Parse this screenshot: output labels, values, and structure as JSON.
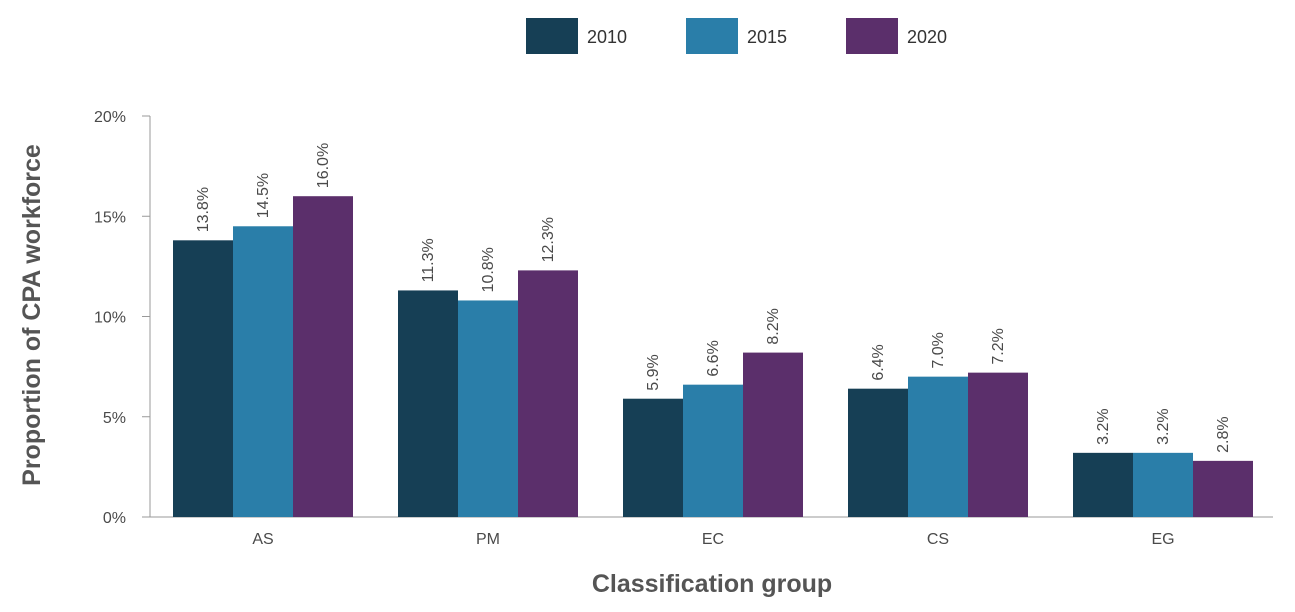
{
  "chart_data": {
    "type": "bar",
    "title": "",
    "xlabel": "Classification group",
    "ylabel": "Proportion of CPA workforce",
    "categories": [
      "AS",
      "PM",
      "EC",
      "CS",
      "EG"
    ],
    "series": [
      {
        "name": "2010",
        "color": "#163f55",
        "values": [
          13.8,
          11.3,
          5.9,
          6.4,
          3.2
        ],
        "labels": [
          "13.8%",
          "11.3%",
          "5.9%",
          "6.4%",
          "3.2%"
        ]
      },
      {
        "name": "2015",
        "color": "#2a7ea9",
        "values": [
          14.5,
          10.8,
          6.6,
          7.0,
          3.2
        ],
        "labels": [
          "14.5%",
          "10.8%",
          "6.6%",
          "7.0%",
          "3.2%"
        ]
      },
      {
        "name": "2020",
        "color": "#5b2f6b",
        "values": [
          16.0,
          12.3,
          8.2,
          7.2,
          2.8
        ],
        "labels": [
          "16.0%",
          "12.3%",
          "8.2%",
          "7.2%",
          "2.8%"
        ]
      }
    ],
    "ylim": [
      0,
      20
    ],
    "yticks": [
      0,
      5,
      10,
      15,
      20
    ],
    "ytick_labels": [
      "0%",
      "5%",
      "10%",
      "15%",
      "20%"
    ],
    "legend_position": "top-center",
    "grid": false
  }
}
